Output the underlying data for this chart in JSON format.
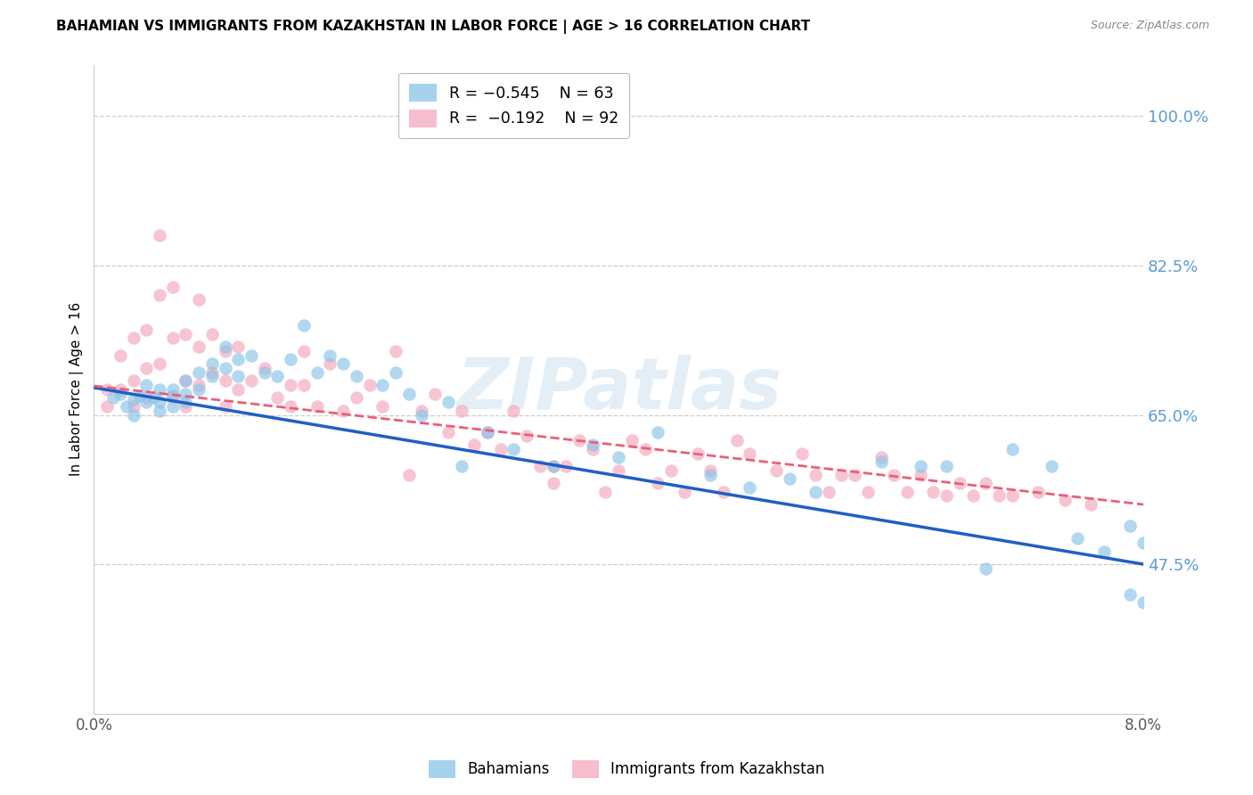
{
  "title": "BAHAMIAN VS IMMIGRANTS FROM KAZAKHSTAN IN LABOR FORCE | AGE > 16 CORRELATION CHART",
  "source": "Source: ZipAtlas.com",
  "ylabel": "In Labor Force | Age > 16",
  "xmin": 0.0,
  "xmax": 0.08,
  "ymin": 0.3,
  "ymax": 1.06,
  "yticks": [
    0.475,
    0.65,
    0.825,
    1.0
  ],
  "ytick_labels": [
    "47.5%",
    "65.0%",
    "82.5%",
    "100.0%"
  ],
  "xticks": [
    0.0,
    0.01,
    0.02,
    0.03,
    0.04,
    0.05,
    0.06,
    0.07,
    0.08
  ],
  "xtick_labels": [
    "0.0%",
    "",
    "",
    "",
    "",
    "",
    "",
    "",
    "8.0%"
  ],
  "blue_color": "#89c4e8",
  "pink_color": "#f4a7bb",
  "blue_line_color": "#1f5fc4",
  "pink_line_color": "#e8607a",
  "watermark": "ZIPatlas",
  "blue_scatter_x": [
    0.0015,
    0.002,
    0.0025,
    0.003,
    0.003,
    0.0035,
    0.004,
    0.004,
    0.0045,
    0.005,
    0.005,
    0.005,
    0.006,
    0.006,
    0.006,
    0.007,
    0.007,
    0.007,
    0.008,
    0.008,
    0.009,
    0.009,
    0.01,
    0.01,
    0.011,
    0.011,
    0.012,
    0.013,
    0.014,
    0.015,
    0.016,
    0.017,
    0.018,
    0.019,
    0.02,
    0.022,
    0.023,
    0.024,
    0.025,
    0.027,
    0.028,
    0.03,
    0.032,
    0.035,
    0.038,
    0.04,
    0.043,
    0.047,
    0.05,
    0.053,
    0.055,
    0.06,
    0.063,
    0.065,
    0.068,
    0.07,
    0.073,
    0.075,
    0.077,
    0.079,
    0.079,
    0.08,
    0.08
  ],
  "blue_scatter_y": [
    0.67,
    0.675,
    0.66,
    0.668,
    0.65,
    0.672,
    0.665,
    0.685,
    0.67,
    0.68,
    0.665,
    0.655,
    0.672,
    0.68,
    0.66,
    0.675,
    0.665,
    0.69,
    0.7,
    0.68,
    0.71,
    0.695,
    0.73,
    0.705,
    0.715,
    0.695,
    0.72,
    0.7,
    0.695,
    0.715,
    0.755,
    0.7,
    0.72,
    0.71,
    0.695,
    0.685,
    0.7,
    0.675,
    0.65,
    0.665,
    0.59,
    0.63,
    0.61,
    0.59,
    0.615,
    0.6,
    0.63,
    0.58,
    0.565,
    0.575,
    0.56,
    0.595,
    0.59,
    0.59,
    0.47,
    0.61,
    0.59,
    0.505,
    0.49,
    0.44,
    0.52,
    0.5,
    0.43
  ],
  "pink_scatter_x": [
    0.001,
    0.001,
    0.002,
    0.002,
    0.003,
    0.003,
    0.003,
    0.004,
    0.004,
    0.004,
    0.005,
    0.005,
    0.005,
    0.006,
    0.006,
    0.006,
    0.007,
    0.007,
    0.007,
    0.008,
    0.008,
    0.008,
    0.009,
    0.009,
    0.01,
    0.01,
    0.01,
    0.011,
    0.011,
    0.012,
    0.013,
    0.014,
    0.015,
    0.015,
    0.016,
    0.016,
    0.017,
    0.018,
    0.019,
    0.02,
    0.021,
    0.022,
    0.023,
    0.024,
    0.025,
    0.026,
    0.027,
    0.028,
    0.029,
    0.03,
    0.031,
    0.032,
    0.033,
    0.034,
    0.035,
    0.035,
    0.036,
    0.037,
    0.038,
    0.039,
    0.04,
    0.041,
    0.042,
    0.043,
    0.044,
    0.045,
    0.046,
    0.047,
    0.048,
    0.049,
    0.05,
    0.052,
    0.054,
    0.055,
    0.056,
    0.057,
    0.058,
    0.059,
    0.06,
    0.061,
    0.062,
    0.063,
    0.064,
    0.065,
    0.066,
    0.067,
    0.068,
    0.069,
    0.07,
    0.072,
    0.074,
    0.076
  ],
  "pink_scatter_y": [
    0.68,
    0.66,
    0.72,
    0.68,
    0.74,
    0.69,
    0.66,
    0.75,
    0.705,
    0.67,
    0.86,
    0.79,
    0.71,
    0.8,
    0.74,
    0.67,
    0.745,
    0.69,
    0.66,
    0.785,
    0.73,
    0.685,
    0.745,
    0.7,
    0.725,
    0.69,
    0.66,
    0.73,
    0.68,
    0.69,
    0.705,
    0.67,
    0.685,
    0.66,
    0.725,
    0.685,
    0.66,
    0.71,
    0.655,
    0.67,
    0.685,
    0.66,
    0.725,
    0.58,
    0.655,
    0.675,
    0.63,
    0.655,
    0.615,
    0.63,
    0.61,
    0.655,
    0.625,
    0.59,
    0.59,
    0.57,
    0.59,
    0.62,
    0.61,
    0.56,
    0.585,
    0.62,
    0.61,
    0.57,
    0.585,
    0.56,
    0.605,
    0.585,
    0.56,
    0.62,
    0.605,
    0.585,
    0.605,
    0.58,
    0.56,
    0.58,
    0.58,
    0.56,
    0.6,
    0.58,
    0.56,
    0.58,
    0.56,
    0.555,
    0.57,
    0.555,
    0.57,
    0.555,
    0.555,
    0.56,
    0.55,
    0.545
  ]
}
